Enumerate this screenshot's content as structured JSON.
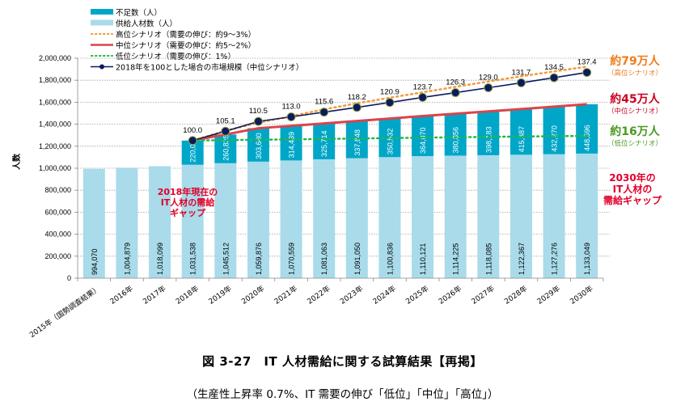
{
  "chart_data": {
    "type": "bar",
    "stacked": true,
    "title": "図 3-27　IT 人材需給に関する試算結果【再掲】",
    "subtitle": "（生産性上昇率 0.7%、IT 需要の伸び「低位」「中位」「高位」）",
    "ylabel": "人数",
    "xlabel": "",
    "ylim": [
      0,
      2000000
    ],
    "yticks": [
      0,
      200000,
      400000,
      600000,
      800000,
      1000000,
      1200000,
      1400000,
      1600000,
      1800000,
      2000000
    ],
    "ytick_labels": [
      "0",
      "200,000",
      "400,000",
      "600,000",
      "800,000",
      "1,000,000",
      "1,200,000",
      "1,400,000",
      "1,600,000",
      "1,800,000",
      "2,000,000"
    ],
    "grid": true,
    "legend_position": "top-left",
    "categories": [
      "2015年（国勢調査結果）",
      "2016年",
      "2017年",
      "2018年",
      "2019年",
      "2020年",
      "2021年",
      "2022年",
      "2023年",
      "2024年",
      "2025年",
      "2026年",
      "2027年",
      "2028年",
      "2029年",
      "2030年"
    ],
    "series": [
      {
        "name": "供給人材数（人）",
        "kind": "bar",
        "color": "#a9dbea",
        "values": [
          994070,
          1004879,
          1018099,
          1031538,
          1045512,
          1059876,
          1070559,
          1081063,
          1091050,
          1100836,
          1110121,
          1114225,
          1118085,
          1122367,
          1127276,
          1133049
        ],
        "labels": [
          "994,070",
          "1,004,879",
          "1,018,099",
          "1,031,538",
          "1,045,512",
          "1,059,876",
          "1,070,559",
          "1,081,063",
          "1,091,050",
          "1,100,836",
          "1,110,121",
          "1,114,225",
          "1,118,085",
          "1,122,367",
          "1,127,276",
          "1,133,049"
        ]
      },
      {
        "name": "不足数（人）",
        "kind": "bar",
        "color": "#00a6c8",
        "values": [
          null,
          null,
          null,
          220000,
          260835,
          303680,
          314439,
          325714,
          337848,
          350532,
          364070,
          380856,
          398183,
          415387,
          432270,
          448596
        ],
        "labels": [
          null,
          null,
          null,
          "220,000",
          "260,835",
          "303,680",
          "314,439",
          "325,714",
          "337,848",
          "350,532",
          "364,070",
          "380,856",
          "398,183",
          "415,387",
          "432,270",
          "448,596"
        ]
      },
      {
        "name": "高位シナリオ（需要の伸び：約9～3%）",
        "kind": "line",
        "style": "dotted",
        "color": "#f39a3a",
        "start_index": 3,
        "values": [
          null,
          null,
          null,
          1251538,
          1341000,
          1413000,
          1473000,
          1535000,
          1590000,
          1641000,
          1690000,
          1740000,
          1788000,
          1836000,
          1880000,
          1923000
        ]
      },
      {
        "name": "中位シナリオ（需要の伸び：約5～2%）",
        "kind": "line",
        "style": "solid",
        "color": "#d9454a",
        "values": [
          null,
          null,
          null,
          1251538,
          1306347,
          1363556,
          1384998,
          1406777,
          1428898,
          1451368,
          1474191,
          1495081,
          1516268,
          1537754,
          1559546,
          1581645
        ]
      },
      {
        "name": "低位シナリオ（需要の伸び：1%）",
        "kind": "line",
        "style": "dotted",
        "color": "#1fb84a",
        "values": [
          null,
          null,
          null,
          1251538,
          1255000,
          1259000,
          1262000,
          1266000,
          1270000,
          1274000,
          1278000,
          1281000,
          1285000,
          1288000,
          1291000,
          1294000
        ]
      },
      {
        "name": "2018年を100とした場合の市場規模（中位シナリオ）",
        "kind": "line-marker",
        "color": "#0d1a5c",
        "marker_color": "#0d1a5c",
        "values": [
          null,
          null,
          null,
          100.0,
          105.1,
          110.5,
          113.0,
          115.6,
          118.2,
          120.9,
          123.7,
          126.3,
          129.0,
          131.7,
          134.5,
          137.4
        ],
        "labels": [
          null,
          null,
          null,
          "100.0",
          "105.1",
          "110.5",
          "113.0",
          "115.6",
          "118.2",
          "120.9",
          "123.7",
          "126.3",
          "129.0",
          "131.7",
          "134.5",
          "137.4"
        ]
      }
    ],
    "annotations": [
      {
        "text": "約79万人",
        "sub": "（高位シナリオ）",
        "color": "#f07a1a"
      },
      {
        "text": "約45万人",
        "sub": "（中位シナリオ）",
        "color": "#cc0020"
      },
      {
        "text": "約16万人",
        "sub": "（低位シナリオ）",
        "color": "#4a9a22"
      },
      {
        "lines": [
          "2018年現在の",
          "IT人材の需給",
          "ギャップ"
        ],
        "color": "#e0002a"
      },
      {
        "lines": [
          "2030年の",
          "IT人材の",
          "需給ギャップ"
        ],
        "color": "#e0002a"
      }
    ]
  }
}
